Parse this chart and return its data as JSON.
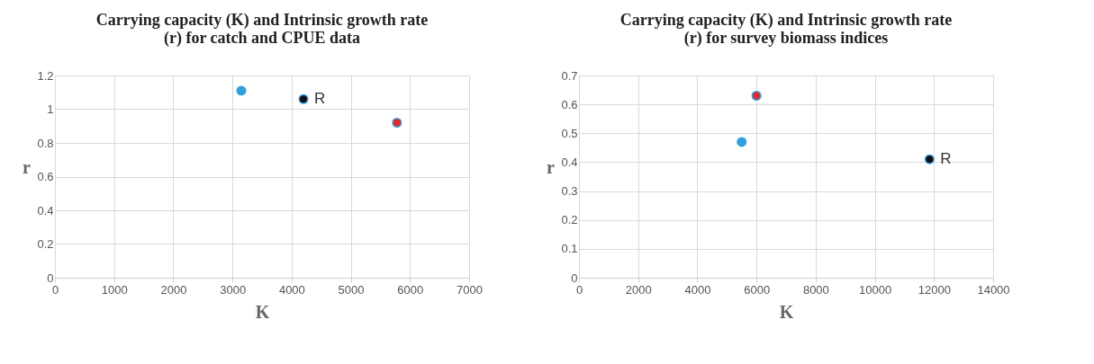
{
  "chart_data": [
    {
      "type": "scatter",
      "title": "Carrying capacity (K) and Intrinsic growth rate (r) for  catch and CPUE data",
      "xlabel": "K",
      "ylabel": "r",
      "xlim": [
        0,
        7000
      ],
      "xticks": [
        0,
        1000,
        2000,
        3000,
        4000,
        5000,
        6000,
        7000
      ],
      "ylim": [
        0,
        1.2
      ],
      "yticks": [
        0,
        0.2,
        0.4,
        0.6,
        0.8,
        1,
        1.2
      ],
      "grid": true,
      "marker": "circle",
      "series": [
        {
          "color": "#2e9fe0",
          "x": [
            3150
          ],
          "values": [
            1.11
          ]
        },
        {
          "name": "R",
          "color": "#101010",
          "x": [
            4200
          ],
          "values": [
            1.06
          ]
        },
        {
          "color": "#e8262a",
          "x": [
            5780
          ],
          "values": [
            0.92
          ]
        }
      ]
    },
    {
      "type": "scatter",
      "title": "Carrying capacity (K) and Intrinsic growth rate (r) for survey biomass indices",
      "xlabel": "K",
      "ylabel": "r",
      "xlim": [
        0,
        14000
      ],
      "xticks": [
        0,
        2000,
        4000,
        6000,
        8000,
        10000,
        12000,
        14000
      ],
      "ylim": [
        0,
        0.7
      ],
      "yticks": [
        0,
        0.1,
        0.2,
        0.3,
        0.4,
        0.5,
        0.6,
        0.7
      ],
      "grid": true,
      "marker": "circle",
      "series": [
        {
          "color": "#e8262a",
          "x": [
            6000
          ],
          "values": [
            0.63
          ]
        },
        {
          "color": "#2e9fe0",
          "x": [
            5500
          ],
          "values": [
            0.47
          ]
        },
        {
          "name": "R",
          "color": "#101010",
          "x": [
            11850
          ],
          "values": [
            0.41
          ]
        }
      ]
    }
  ]
}
